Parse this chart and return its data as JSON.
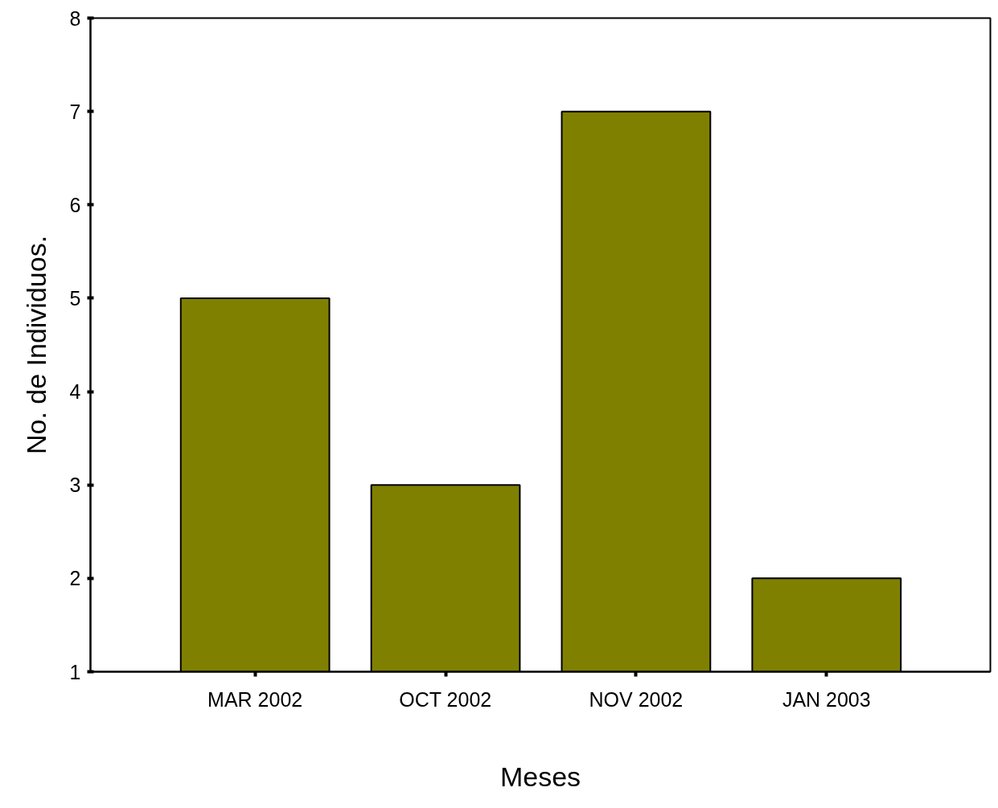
{
  "chart_data": {
    "type": "bar",
    "xlabel": "Meses",
    "ylabel": "No. de Individuos.",
    "categories": [
      "MAR 2002",
      "OCT 2002",
      "NOV 2002",
      "JAN 2003"
    ],
    "values": [
      5,
      3,
      7,
      2
    ],
    "color": "#808000",
    "ylim": [
      1,
      8
    ],
    "yticks": [
      1,
      2,
      3,
      4,
      5,
      6,
      7,
      8
    ],
    "grid": false
  }
}
